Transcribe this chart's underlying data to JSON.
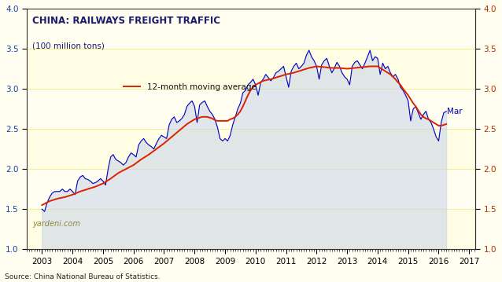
{
  "title_line1": "CHINA: RAILWAYS FREIGHT TRAFFIC",
  "title_line2": "(100 million tons)",
  "source": "Source: China National Bureau of Statistics.",
  "watermark": "yardeni.com",
  "legend_label": "12-month moving average",
  "mar_label": "Mar",
  "ylim": [
    1.0,
    4.0
  ],
  "xlim_start": 2002.5,
  "xlim_end": 2017.2,
  "bg_outer": "#FFFEF0",
  "bg_chart": "#FFFEF0",
  "fill_color": "#C8D4E8",
  "line_color_blue": "#0000BB",
  "line_color_red": "#DD2200",
  "tick_color_left": "#1144AA",
  "tick_color_right": "#AA3300",
  "grid_color": "#F5F590",
  "data_end_x": 2016.0,
  "monthly_data": [
    [
      2003.0,
      1.5
    ],
    [
      2003.083,
      1.47
    ],
    [
      2003.167,
      1.58
    ],
    [
      2003.25,
      1.65
    ],
    [
      2003.333,
      1.7
    ],
    [
      2003.417,
      1.72
    ],
    [
      2003.5,
      1.72
    ],
    [
      2003.583,
      1.72
    ],
    [
      2003.667,
      1.75
    ],
    [
      2003.75,
      1.72
    ],
    [
      2003.833,
      1.72
    ],
    [
      2003.917,
      1.75
    ],
    [
      2004.0,
      1.72
    ],
    [
      2004.083,
      1.68
    ],
    [
      2004.167,
      1.85
    ],
    [
      2004.25,
      1.9
    ],
    [
      2004.333,
      1.92
    ],
    [
      2004.417,
      1.88
    ],
    [
      2004.5,
      1.87
    ],
    [
      2004.583,
      1.85
    ],
    [
      2004.667,
      1.82
    ],
    [
      2004.75,
      1.83
    ],
    [
      2004.833,
      1.85
    ],
    [
      2004.917,
      1.88
    ],
    [
      2005.0,
      1.85
    ],
    [
      2005.083,
      1.8
    ],
    [
      2005.167,
      2.0
    ],
    [
      2005.25,
      2.15
    ],
    [
      2005.333,
      2.18
    ],
    [
      2005.417,
      2.12
    ],
    [
      2005.5,
      2.1
    ],
    [
      2005.583,
      2.08
    ],
    [
      2005.667,
      2.05
    ],
    [
      2005.75,
      2.08
    ],
    [
      2005.833,
      2.15
    ],
    [
      2005.917,
      2.2
    ],
    [
      2006.0,
      2.18
    ],
    [
      2006.083,
      2.15
    ],
    [
      2006.167,
      2.3
    ],
    [
      2006.25,
      2.35
    ],
    [
      2006.333,
      2.38
    ],
    [
      2006.417,
      2.33
    ],
    [
      2006.5,
      2.3
    ],
    [
      2006.583,
      2.28
    ],
    [
      2006.667,
      2.25
    ],
    [
      2006.75,
      2.32
    ],
    [
      2006.833,
      2.38
    ],
    [
      2006.917,
      2.42
    ],
    [
      2007.0,
      2.4
    ],
    [
      2007.083,
      2.38
    ],
    [
      2007.167,
      2.55
    ],
    [
      2007.25,
      2.62
    ],
    [
      2007.333,
      2.65
    ],
    [
      2007.417,
      2.58
    ],
    [
      2007.5,
      2.6
    ],
    [
      2007.583,
      2.63
    ],
    [
      2007.667,
      2.68
    ],
    [
      2007.75,
      2.78
    ],
    [
      2007.833,
      2.82
    ],
    [
      2007.917,
      2.85
    ],
    [
      2008.0,
      2.78
    ],
    [
      2008.083,
      2.58
    ],
    [
      2008.167,
      2.8
    ],
    [
      2008.25,
      2.83
    ],
    [
      2008.333,
      2.85
    ],
    [
      2008.417,
      2.78
    ],
    [
      2008.5,
      2.72
    ],
    [
      2008.583,
      2.68
    ],
    [
      2008.667,
      2.62
    ],
    [
      2008.75,
      2.52
    ],
    [
      2008.833,
      2.38
    ],
    [
      2008.917,
      2.35
    ],
    [
      2009.0,
      2.38
    ],
    [
      2009.083,
      2.35
    ],
    [
      2009.167,
      2.42
    ],
    [
      2009.25,
      2.55
    ],
    [
      2009.333,
      2.65
    ],
    [
      2009.417,
      2.75
    ],
    [
      2009.5,
      2.82
    ],
    [
      2009.583,
      2.95
    ],
    [
      2009.667,
      2.98
    ],
    [
      2009.75,
      3.05
    ],
    [
      2009.833,
      3.08
    ],
    [
      2009.917,
      3.12
    ],
    [
      2010.0,
      3.05
    ],
    [
      2010.083,
      2.92
    ],
    [
      2010.167,
      3.08
    ],
    [
      2010.25,
      3.12
    ],
    [
      2010.333,
      3.18
    ],
    [
      2010.417,
      3.14
    ],
    [
      2010.5,
      3.1
    ],
    [
      2010.583,
      3.14
    ],
    [
      2010.667,
      3.2
    ],
    [
      2010.75,
      3.22
    ],
    [
      2010.833,
      3.25
    ],
    [
      2010.917,
      3.28
    ],
    [
      2011.0,
      3.15
    ],
    [
      2011.083,
      3.02
    ],
    [
      2011.167,
      3.22
    ],
    [
      2011.25,
      3.28
    ],
    [
      2011.333,
      3.32
    ],
    [
      2011.417,
      3.25
    ],
    [
      2011.5,
      3.28
    ],
    [
      2011.583,
      3.32
    ],
    [
      2011.667,
      3.42
    ],
    [
      2011.75,
      3.48
    ],
    [
      2011.833,
      3.4
    ],
    [
      2011.917,
      3.35
    ],
    [
      2012.0,
      3.28
    ],
    [
      2012.083,
      3.12
    ],
    [
      2012.167,
      3.3
    ],
    [
      2012.25,
      3.35
    ],
    [
      2012.333,
      3.38
    ],
    [
      2012.417,
      3.28
    ],
    [
      2012.5,
      3.2
    ],
    [
      2012.583,
      3.26
    ],
    [
      2012.667,
      3.33
    ],
    [
      2012.75,
      3.28
    ],
    [
      2012.833,
      3.2
    ],
    [
      2012.917,
      3.15
    ],
    [
      2013.0,
      3.12
    ],
    [
      2013.083,
      3.05
    ],
    [
      2013.167,
      3.28
    ],
    [
      2013.25,
      3.33
    ],
    [
      2013.333,
      3.35
    ],
    [
      2013.417,
      3.3
    ],
    [
      2013.5,
      3.25
    ],
    [
      2013.583,
      3.32
    ],
    [
      2013.667,
      3.4
    ],
    [
      2013.75,
      3.48
    ],
    [
      2013.833,
      3.35
    ],
    [
      2013.917,
      3.4
    ],
    [
      2014.0,
      3.38
    ],
    [
      2014.083,
      3.18
    ],
    [
      2014.167,
      3.32
    ],
    [
      2014.25,
      3.25
    ],
    [
      2014.333,
      3.28
    ],
    [
      2014.417,
      3.2
    ],
    [
      2014.5,
      3.15
    ],
    [
      2014.583,
      3.18
    ],
    [
      2014.667,
      3.12
    ],
    [
      2014.75,
      3.02
    ],
    [
      2014.833,
      2.98
    ],
    [
      2014.917,
      2.92
    ],
    [
      2015.0,
      2.85
    ],
    [
      2015.083,
      2.6
    ],
    [
      2015.167,
      2.75
    ],
    [
      2015.25,
      2.78
    ],
    [
      2015.333,
      2.7
    ],
    [
      2015.417,
      2.62
    ],
    [
      2015.5,
      2.68
    ],
    [
      2015.583,
      2.72
    ],
    [
      2015.667,
      2.62
    ],
    [
      2015.75,
      2.58
    ],
    [
      2015.833,
      2.5
    ],
    [
      2015.917,
      2.4
    ],
    [
      2016.0,
      2.35
    ],
    [
      2016.083,
      2.58
    ],
    [
      2016.167,
      2.7
    ],
    [
      2016.25,
      2.72
    ]
  ],
  "ma_data": [
    [
      2003.0,
      1.55
    ],
    [
      2003.25,
      1.6
    ],
    [
      2003.5,
      1.63
    ],
    [
      2003.75,
      1.65
    ],
    [
      2004.0,
      1.68
    ],
    [
      2004.25,
      1.72
    ],
    [
      2004.5,
      1.75
    ],
    [
      2004.75,
      1.78
    ],
    [
      2005.0,
      1.82
    ],
    [
      2005.25,
      1.88
    ],
    [
      2005.5,
      1.95
    ],
    [
      2005.75,
      2.0
    ],
    [
      2006.0,
      2.05
    ],
    [
      2006.25,
      2.12
    ],
    [
      2006.5,
      2.18
    ],
    [
      2006.75,
      2.25
    ],
    [
      2007.0,
      2.32
    ],
    [
      2007.25,
      2.4
    ],
    [
      2007.5,
      2.48
    ],
    [
      2007.75,
      2.56
    ],
    [
      2008.0,
      2.62
    ],
    [
      2008.083,
      2.63
    ],
    [
      2008.167,
      2.64
    ],
    [
      2008.25,
      2.65
    ],
    [
      2008.333,
      2.65
    ],
    [
      2008.417,
      2.65
    ],
    [
      2008.5,
      2.64
    ],
    [
      2008.583,
      2.63
    ],
    [
      2008.667,
      2.61
    ],
    [
      2008.75,
      2.6
    ],
    [
      2008.833,
      2.6
    ],
    [
      2008.917,
      2.6
    ],
    [
      2009.0,
      2.6
    ],
    [
      2009.083,
      2.6
    ],
    [
      2009.167,
      2.62
    ],
    [
      2009.25,
      2.63
    ],
    [
      2009.333,
      2.65
    ],
    [
      2009.417,
      2.68
    ],
    [
      2009.5,
      2.72
    ],
    [
      2009.583,
      2.78
    ],
    [
      2009.667,
      2.85
    ],
    [
      2009.75,
      2.92
    ],
    [
      2009.833,
      2.98
    ],
    [
      2009.917,
      3.02
    ],
    [
      2010.0,
      3.05
    ],
    [
      2010.25,
      3.1
    ],
    [
      2010.5,
      3.12
    ],
    [
      2010.75,
      3.15
    ],
    [
      2011.0,
      3.18
    ],
    [
      2011.25,
      3.2
    ],
    [
      2011.5,
      3.23
    ],
    [
      2011.75,
      3.26
    ],
    [
      2012.0,
      3.28
    ],
    [
      2012.25,
      3.27
    ],
    [
      2012.5,
      3.26
    ],
    [
      2012.75,
      3.26
    ],
    [
      2013.0,
      3.25
    ],
    [
      2013.25,
      3.26
    ],
    [
      2013.5,
      3.27
    ],
    [
      2013.75,
      3.28
    ],
    [
      2014.0,
      3.28
    ],
    [
      2014.083,
      3.26
    ],
    [
      2014.167,
      3.24
    ],
    [
      2014.25,
      3.22
    ],
    [
      2014.333,
      3.2
    ],
    [
      2014.417,
      3.18
    ],
    [
      2014.5,
      3.15
    ],
    [
      2014.583,
      3.12
    ],
    [
      2014.667,
      3.08
    ],
    [
      2014.75,
      3.05
    ],
    [
      2014.833,
      3.0
    ],
    [
      2014.917,
      2.96
    ],
    [
      2015.0,
      2.92
    ],
    [
      2015.083,
      2.87
    ],
    [
      2015.167,
      2.82
    ],
    [
      2015.25,
      2.78
    ],
    [
      2015.333,
      2.73
    ],
    [
      2015.417,
      2.68
    ],
    [
      2015.5,
      2.65
    ],
    [
      2015.583,
      2.63
    ],
    [
      2015.667,
      2.62
    ],
    [
      2015.75,
      2.6
    ],
    [
      2015.833,
      2.58
    ],
    [
      2015.917,
      2.56
    ],
    [
      2016.0,
      2.54
    ],
    [
      2016.083,
      2.54
    ],
    [
      2016.167,
      2.55
    ],
    [
      2016.25,
      2.56
    ]
  ],
  "yticks": [
    1.0,
    1.5,
    2.0,
    2.5,
    3.0,
    3.5,
    4.0
  ],
  "xticks": [
    2003,
    2004,
    2005,
    2006,
    2007,
    2008,
    2009,
    2010,
    2011,
    2012,
    2013,
    2014,
    2015,
    2016,
    2017
  ],
  "yellow_band_end": 2016.0
}
